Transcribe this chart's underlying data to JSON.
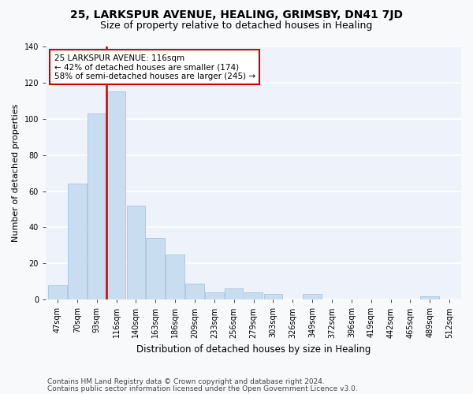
{
  "title_line1": "25, LARKSPUR AVENUE, HEALING, GRIMSBY, DN41 7JD",
  "title_line2": "Size of property relative to detached houses in Healing",
  "xlabel": "Distribution of detached houses by size in Healing",
  "ylabel": "Number of detached properties",
  "categories": [
    "47sqm",
    "70sqm",
    "93sqm",
    "116sqm",
    "140sqm",
    "163sqm",
    "186sqm",
    "209sqm",
    "233sqm",
    "256sqm",
    "279sqm",
    "303sqm",
    "326sqm",
    "349sqm",
    "372sqm",
    "396sqm",
    "419sqm",
    "442sqm",
    "465sqm",
    "489sqm",
    "512sqm"
  ],
  "values": [
    8,
    64,
    103,
    115,
    52,
    34,
    25,
    9,
    4,
    6,
    4,
    3,
    0,
    3,
    0,
    0,
    0,
    0,
    0,
    2,
    0
  ],
  "bar_color": "#c9ddf0",
  "bar_edge_color": "#a8c4e0",
  "vline_x_index": 3,
  "vline_color": "#cc0000",
  "annotation_text": "25 LARKSPUR AVENUE: 116sqm\n← 42% of detached houses are smaller (174)\n58% of semi-detached houses are larger (245) →",
  "annotation_box_color": "#ffffff",
  "annotation_box_edge_color": "#cc0000",
  "ylim": [
    0,
    140
  ],
  "yticks": [
    0,
    20,
    40,
    60,
    80,
    100,
    120,
    140
  ],
  "footer_line1": "Contains HM Land Registry data © Crown copyright and database right 2024.",
  "footer_line2": "Contains public sector information licensed under the Open Government Licence v3.0.",
  "background_color": "#eef2fa",
  "grid_color": "#ffffff",
  "fig_background": "#f8f9fb",
  "title1_fontsize": 10,
  "title2_fontsize": 9,
  "xlabel_fontsize": 8.5,
  "ylabel_fontsize": 8,
  "tick_fontsize": 7,
  "annotation_fontsize": 7.5,
  "footer_fontsize": 6.5
}
